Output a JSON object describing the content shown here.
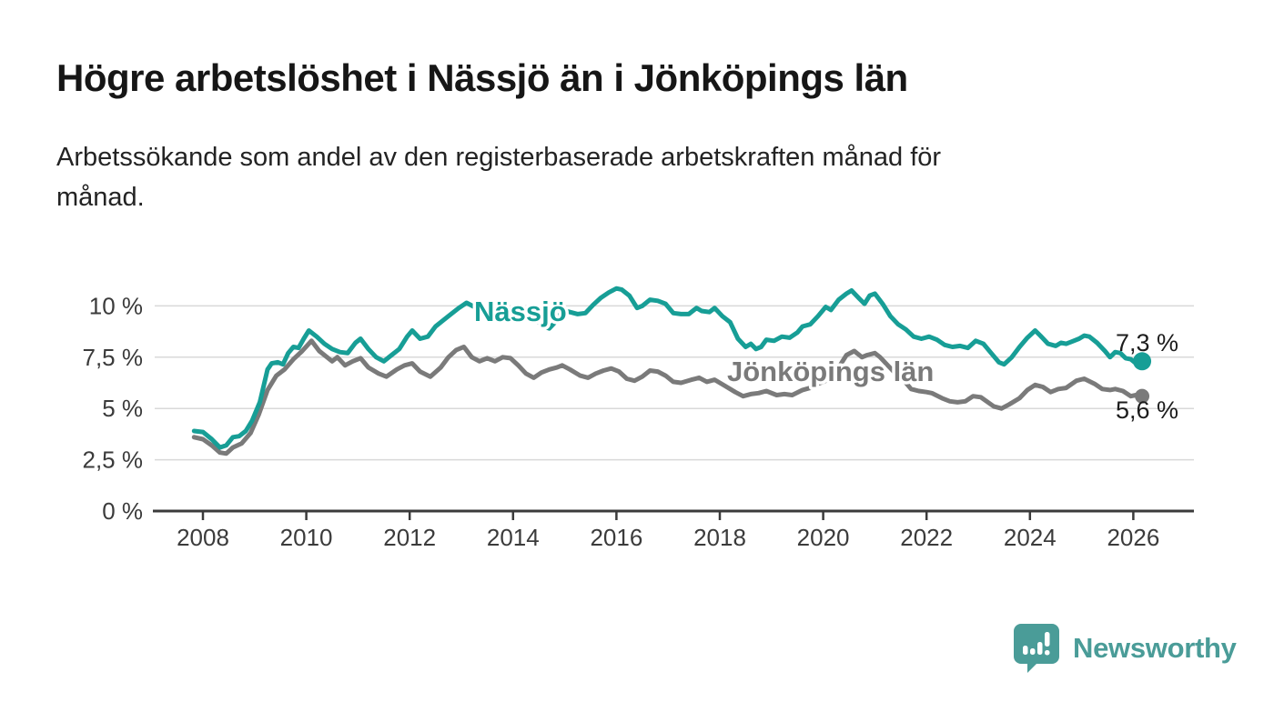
{
  "header": {
    "title": "Högre arbetslöshet i Nässjö än i Jönköpings län",
    "subtitle": "Arbetssökande som andel av den registerbaserade arbetskraften månad för\nmånad."
  },
  "branding": {
    "name": "Newsworthy",
    "color": "#4a9c98",
    "logo_icon": "speech-bubble-bar-chart-icon"
  },
  "colors": {
    "nassjo_line": "#179e96",
    "jonkoping_line": "#7a7a7a",
    "grid": "#d9d9d9",
    "axis": "#3b3b3b",
    "text": "#1c1c1c"
  },
  "chart_data": {
    "type": "line",
    "title": "Högre arbetslöshet i Nässjö än i Jönköpings län",
    "subtitle": "Arbetssökande som andel av den registerbaserade arbetskraften månad för månad.",
    "unit": "%",
    "grid": true,
    "x_range": [
      2007.7,
      2027.2
    ],
    "y_range": [
      0,
      11.5
    ],
    "x_ticks": [
      2008,
      2010,
      2012,
      2014,
      2016,
      2018,
      2020,
      2022,
      2024,
      2026
    ],
    "y_ticks": [
      {
        "value": 0,
        "label": "0 %"
      },
      {
        "value": 2.5,
        "label": "2,5 %"
      },
      {
        "value": 5,
        "label": "5 %"
      },
      {
        "value": 7.5,
        "label": "7,5 %"
      },
      {
        "value": 10,
        "label": "10 %"
      }
    ],
    "series": [
      {
        "name": "Nässjö",
        "color": "#179e96",
        "end_label": "7,3 %",
        "last_value": 7.3,
        "points": [
          [
            2007.83,
            3.9
          ],
          [
            2008.0,
            3.85
          ],
          [
            2008.17,
            3.5
          ],
          [
            2008.33,
            3.1
          ],
          [
            2008.45,
            3.2
          ],
          [
            2008.58,
            3.6
          ],
          [
            2008.7,
            3.65
          ],
          [
            2008.83,
            3.9
          ],
          [
            2008.95,
            4.4
          ],
          [
            2009.1,
            5.3
          ],
          [
            2009.25,
            6.9
          ],
          [
            2009.33,
            7.2
          ],
          [
            2009.45,
            7.25
          ],
          [
            2009.55,
            7.15
          ],
          [
            2009.65,
            7.7
          ],
          [
            2009.75,
            8.0
          ],
          [
            2009.85,
            7.95
          ],
          [
            2009.95,
            8.4
          ],
          [
            2010.05,
            8.8
          ],
          [
            2010.2,
            8.5
          ],
          [
            2010.35,
            8.15
          ],
          [
            2010.5,
            7.9
          ],
          [
            2010.65,
            7.75
          ],
          [
            2010.8,
            7.7
          ],
          [
            2010.95,
            8.2
          ],
          [
            2011.05,
            8.4
          ],
          [
            2011.2,
            7.9
          ],
          [
            2011.35,
            7.5
          ],
          [
            2011.5,
            7.3
          ],
          [
            2011.65,
            7.6
          ],
          [
            2011.8,
            7.9
          ],
          [
            2011.95,
            8.5
          ],
          [
            2012.05,
            8.8
          ],
          [
            2012.2,
            8.4
          ],
          [
            2012.35,
            8.5
          ],
          [
            2012.5,
            9.0
          ],
          [
            2012.65,
            9.3
          ],
          [
            2012.8,
            9.6
          ],
          [
            2012.95,
            9.9
          ],
          [
            2013.1,
            10.15
          ],
          [
            2013.25,
            9.95
          ],
          [
            2013.4,
            9.7
          ],
          [
            2013.55,
            9.9
          ],
          [
            2013.7,
            10.0
          ],
          [
            2013.85,
            9.9
          ],
          [
            2014.0,
            9.75
          ],
          [
            2014.15,
            9.55
          ],
          [
            2014.3,
            9.5
          ],
          [
            2014.45,
            9.3
          ],
          [
            2014.6,
            9.0
          ],
          [
            2014.7,
            8.9
          ],
          [
            2014.85,
            9.3
          ],
          [
            2014.95,
            9.8
          ],
          [
            2015.1,
            9.7
          ],
          [
            2015.25,
            9.6
          ],
          [
            2015.4,
            9.65
          ],
          [
            2015.55,
            10.05
          ],
          [
            2015.7,
            10.4
          ],
          [
            2015.85,
            10.65
          ],
          [
            2016.0,
            10.85
          ],
          [
            2016.1,
            10.8
          ],
          [
            2016.25,
            10.5
          ],
          [
            2016.4,
            9.9
          ],
          [
            2016.5,
            10.0
          ],
          [
            2016.65,
            10.3
          ],
          [
            2016.8,
            10.25
          ],
          [
            2016.95,
            10.1
          ],
          [
            2017.1,
            9.65
          ],
          [
            2017.25,
            9.6
          ],
          [
            2017.4,
            9.6
          ],
          [
            2017.55,
            9.9
          ],
          [
            2017.65,
            9.75
          ],
          [
            2017.8,
            9.7
          ],
          [
            2017.9,
            9.9
          ],
          [
            2018.05,
            9.5
          ],
          [
            2018.2,
            9.2
          ],
          [
            2018.35,
            8.4
          ],
          [
            2018.5,
            8.0
          ],
          [
            2018.6,
            8.15
          ],
          [
            2018.7,
            7.9
          ],
          [
            2018.8,
            8.0
          ],
          [
            2018.9,
            8.35
          ],
          [
            2019.05,
            8.3
          ],
          [
            2019.2,
            8.5
          ],
          [
            2019.35,
            8.45
          ],
          [
            2019.5,
            8.7
          ],
          [
            2019.6,
            9.0
          ],
          [
            2019.75,
            9.1
          ],
          [
            2019.9,
            9.5
          ],
          [
            2020.05,
            9.95
          ],
          [
            2020.15,
            9.8
          ],
          [
            2020.3,
            10.3
          ],
          [
            2020.45,
            10.6
          ],
          [
            2020.55,
            10.75
          ],
          [
            2020.7,
            10.35
          ],
          [
            2020.8,
            10.1
          ],
          [
            2020.9,
            10.5
          ],
          [
            2021.0,
            10.6
          ],
          [
            2021.15,
            10.1
          ],
          [
            2021.3,
            9.5
          ],
          [
            2021.45,
            9.1
          ],
          [
            2021.6,
            8.85
          ],
          [
            2021.75,
            8.5
          ],
          [
            2021.9,
            8.4
          ],
          [
            2022.05,
            8.5
          ],
          [
            2022.2,
            8.35
          ],
          [
            2022.35,
            8.1
          ],
          [
            2022.5,
            8.0
          ],
          [
            2022.65,
            8.05
          ],
          [
            2022.8,
            7.95
          ],
          [
            2022.95,
            8.3
          ],
          [
            2023.1,
            8.15
          ],
          [
            2023.25,
            7.7
          ],
          [
            2023.4,
            7.25
          ],
          [
            2023.5,
            7.15
          ],
          [
            2023.65,
            7.5
          ],
          [
            2023.8,
            8.0
          ],
          [
            2023.95,
            8.45
          ],
          [
            2024.1,
            8.8
          ],
          [
            2024.2,
            8.55
          ],
          [
            2024.35,
            8.15
          ],
          [
            2024.5,
            8.05
          ],
          [
            2024.6,
            8.2
          ],
          [
            2024.7,
            8.15
          ],
          [
            2024.8,
            8.25
          ],
          [
            2024.95,
            8.4
          ],
          [
            2025.05,
            8.55
          ],
          [
            2025.15,
            8.5
          ],
          [
            2025.3,
            8.2
          ],
          [
            2025.45,
            7.8
          ],
          [
            2025.55,
            7.5
          ],
          [
            2025.65,
            7.75
          ],
          [
            2025.75,
            7.7
          ],
          [
            2025.85,
            7.45
          ],
          [
            2025.95,
            7.4
          ],
          [
            2026.05,
            7.2
          ],
          [
            2026.17,
            7.3
          ]
        ]
      },
      {
        "name": "Jönköpings län",
        "color": "#7a7a7a",
        "end_label": "5,6 %",
        "last_value": 5.6,
        "points": [
          [
            2007.83,
            3.6
          ],
          [
            2008.0,
            3.5
          ],
          [
            2008.17,
            3.2
          ],
          [
            2008.33,
            2.85
          ],
          [
            2008.45,
            2.8
          ],
          [
            2008.58,
            3.1
          ],
          [
            2008.75,
            3.3
          ],
          [
            2008.92,
            3.8
          ],
          [
            2009.08,
            4.7
          ],
          [
            2009.25,
            5.9
          ],
          [
            2009.42,
            6.6
          ],
          [
            2009.58,
            6.9
          ],
          [
            2009.75,
            7.4
          ],
          [
            2009.92,
            7.8
          ],
          [
            2010.1,
            8.3
          ],
          [
            2010.25,
            7.8
          ],
          [
            2010.5,
            7.3
          ],
          [
            2010.6,
            7.5
          ],
          [
            2010.75,
            7.1
          ],
          [
            2010.9,
            7.3
          ],
          [
            2011.05,
            7.45
          ],
          [
            2011.2,
            7.0
          ],
          [
            2011.4,
            6.7
          ],
          [
            2011.55,
            6.55
          ],
          [
            2011.75,
            6.9
          ],
          [
            2011.9,
            7.1
          ],
          [
            2012.05,
            7.2
          ],
          [
            2012.2,
            6.8
          ],
          [
            2012.4,
            6.55
          ],
          [
            2012.6,
            7.0
          ],
          [
            2012.75,
            7.5
          ],
          [
            2012.9,
            7.85
          ],
          [
            2013.05,
            8.0
          ],
          [
            2013.2,
            7.5
          ],
          [
            2013.35,
            7.3
          ],
          [
            2013.5,
            7.45
          ],
          [
            2013.65,
            7.3
          ],
          [
            2013.8,
            7.5
          ],
          [
            2013.95,
            7.45
          ],
          [
            2014.1,
            7.1
          ],
          [
            2014.25,
            6.7
          ],
          [
            2014.4,
            6.5
          ],
          [
            2014.55,
            6.75
          ],
          [
            2014.7,
            6.9
          ],
          [
            2014.85,
            7.0
          ],
          [
            2014.95,
            7.1
          ],
          [
            2015.1,
            6.9
          ],
          [
            2015.3,
            6.6
          ],
          [
            2015.45,
            6.5
          ],
          [
            2015.6,
            6.7
          ],
          [
            2015.75,
            6.85
          ],
          [
            2015.9,
            6.95
          ],
          [
            2016.05,
            6.8
          ],
          [
            2016.2,
            6.45
          ],
          [
            2016.35,
            6.35
          ],
          [
            2016.5,
            6.55
          ],
          [
            2016.65,
            6.85
          ],
          [
            2016.8,
            6.8
          ],
          [
            2016.95,
            6.6
          ],
          [
            2017.1,
            6.3
          ],
          [
            2017.25,
            6.25
          ],
          [
            2017.45,
            6.4
          ],
          [
            2017.6,
            6.5
          ],
          [
            2017.75,
            6.3
          ],
          [
            2017.9,
            6.4
          ],
          [
            2018.1,
            6.1
          ],
          [
            2018.3,
            5.8
          ],
          [
            2018.45,
            5.6
          ],
          [
            2018.6,
            5.7
          ],
          [
            2018.75,
            5.75
          ],
          [
            2018.9,
            5.85
          ],
          [
            2019.1,
            5.65
          ],
          [
            2019.25,
            5.7
          ],
          [
            2019.4,
            5.65
          ],
          [
            2019.6,
            5.9
          ],
          [
            2019.75,
            6.0
          ],
          [
            2019.9,
            6.2
          ],
          [
            2020.1,
            6.4
          ],
          [
            2020.3,
            7.0
          ],
          [
            2020.45,
            7.6
          ],
          [
            2020.6,
            7.8
          ],
          [
            2020.75,
            7.5
          ],
          [
            2020.85,
            7.6
          ],
          [
            2021.0,
            7.7
          ],
          [
            2021.1,
            7.5
          ],
          [
            2021.25,
            7.1
          ],
          [
            2021.4,
            6.7
          ],
          [
            2021.55,
            6.4
          ],
          [
            2021.7,
            5.95
          ],
          [
            2021.85,
            5.85
          ],
          [
            2022.0,
            5.8
          ],
          [
            2022.1,
            5.75
          ],
          [
            2022.3,
            5.5
          ],
          [
            2022.45,
            5.35
          ],
          [
            2022.6,
            5.3
          ],
          [
            2022.75,
            5.35
          ],
          [
            2022.9,
            5.6
          ],
          [
            2023.05,
            5.55
          ],
          [
            2023.3,
            5.1
          ],
          [
            2023.45,
            5.0
          ],
          [
            2023.6,
            5.2
          ],
          [
            2023.8,
            5.5
          ],
          [
            2023.95,
            5.9
          ],
          [
            2024.1,
            6.15
          ],
          [
            2024.25,
            6.05
          ],
          [
            2024.4,
            5.8
          ],
          [
            2024.55,
            5.95
          ],
          [
            2024.7,
            6.0
          ],
          [
            2024.9,
            6.35
          ],
          [
            2025.05,
            6.45
          ],
          [
            2025.25,
            6.2
          ],
          [
            2025.4,
            5.95
          ],
          [
            2025.55,
            5.9
          ],
          [
            2025.65,
            5.95
          ],
          [
            2025.8,
            5.85
          ],
          [
            2025.95,
            5.6
          ],
          [
            2026.05,
            5.65
          ],
          [
            2026.17,
            5.6
          ]
        ]
      }
    ],
    "legend_position": "inline-labels"
  }
}
